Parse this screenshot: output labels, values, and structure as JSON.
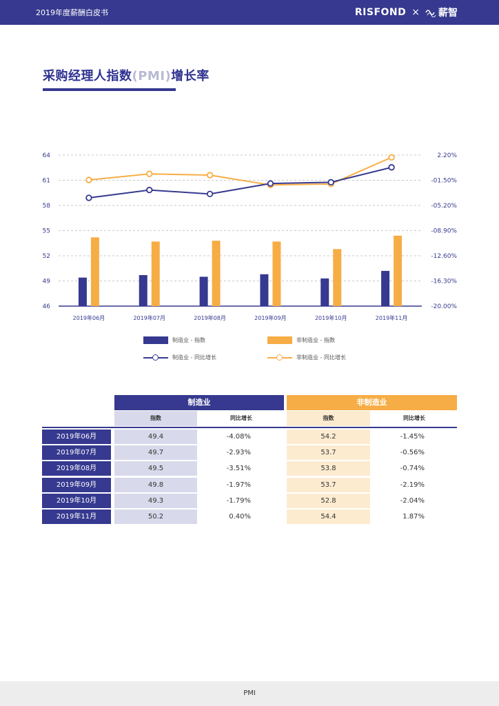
{
  "header": {
    "doc_title": "2019年度薪酬白皮书",
    "brand_left": "RISFOND",
    "brand_sep": "×",
    "brand_right": "薪智"
  },
  "page": {
    "title_main": "采购经理人指数",
    "title_pmi": "(PMI)",
    "title_tail": "增长率",
    "footer_label": "PMI"
  },
  "colors": {
    "navy": "#36398f",
    "orange": "#f7ad45",
    "navy_light": "#d9d9ec",
    "orange_light": "#fdebd0"
  },
  "chart_data": {
    "type": "bar+line",
    "categories": [
      "2019年06月",
      "2019年07月",
      "2019年08月",
      "2019年09月",
      "2019年10月",
      "2019年11月"
    ],
    "left_axis": {
      "ticks": [
        "64",
        "61",
        "58",
        "55",
        "52",
        "49",
        "46"
      ],
      "ylim": [
        46,
        64
      ]
    },
    "right_axis": {
      "ticks": [
        "2.20%",
        "-01.50%",
        "-05.20%",
        "-08.90%",
        "-12.60%",
        "-16.30%",
        "-20.00%"
      ],
      "ylim": [
        -20.0,
        2.2
      ]
    },
    "series": [
      {
        "name": "制造业 - 指数",
        "kind": "bar",
        "axis": "left",
        "values": [
          49.4,
          49.7,
          49.5,
          49.8,
          49.3,
          50.2
        ]
      },
      {
        "name": "非制造业 - 指数",
        "kind": "bar",
        "axis": "left",
        "values": [
          54.2,
          53.7,
          53.8,
          53.7,
          52.8,
          54.4
        ]
      },
      {
        "name": "制造业 - 同比增长",
        "kind": "line",
        "axis": "right",
        "values": [
          -4.08,
          -2.93,
          -3.51,
          -1.97,
          -1.79,
          0.4
        ]
      },
      {
        "name": "非制造业 - 同比增长",
        "kind": "line",
        "axis": "right",
        "values": [
          -1.45,
          -0.56,
          -0.74,
          -2.19,
          -2.04,
          1.87
        ]
      }
    ]
  },
  "legend": {
    "mfg_index": "制造业 - 指数",
    "nonmfg_index": "非制造业 - 指数",
    "mfg_growth": "制造业 - 同比增长",
    "nonmfg_growth": "非制造业 - 同比增长"
  },
  "table": {
    "group_mfg": "制造业",
    "group_nonmfg": "非制造业",
    "col_index": "指数",
    "col_growth": "同比增长",
    "rows": [
      {
        "month": "2019年06月",
        "mfg_index": "49.4",
        "mfg_growth": "-4.08%",
        "nonmfg_index": "54.2",
        "nonmfg_growth": "-1.45%"
      },
      {
        "month": "2019年07月",
        "mfg_index": "49.7",
        "mfg_growth": "-2.93%",
        "nonmfg_index": "53.7",
        "nonmfg_growth": "-0.56%"
      },
      {
        "month": "2019年08月",
        "mfg_index": "49.5",
        "mfg_growth": "-3.51%",
        "nonmfg_index": "53.8",
        "nonmfg_growth": "-0.74%"
      },
      {
        "month": "2019年09月",
        "mfg_index": "49.8",
        "mfg_growth": "-1.97%",
        "nonmfg_index": "53.7",
        "nonmfg_growth": "-2.19%"
      },
      {
        "month": "2019年10月",
        "mfg_index": "49.3",
        "mfg_growth": "-1.79%",
        "nonmfg_index": "52.8",
        "nonmfg_growth": "-2.04%"
      },
      {
        "month": "2019年11月",
        "mfg_index": "50.2",
        "mfg_growth": "0.40%",
        "nonmfg_index": "54.4",
        "nonmfg_growth": "1.87%"
      }
    ]
  }
}
